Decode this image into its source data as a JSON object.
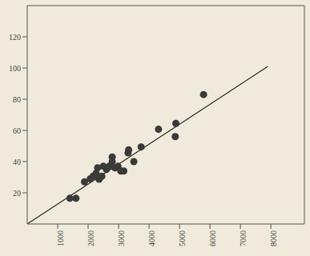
{
  "chart_data": {
    "type": "scatter",
    "xlim": [
      0,
      9100
    ],
    "ylim": [
      0,
      140
    ],
    "xticks": [
      1000,
      2000,
      3000,
      4000,
      5000,
      6000,
      7000,
      8000
    ],
    "yticks": [
      20,
      40,
      60,
      80,
      100,
      120
    ],
    "grid": false,
    "series": [
      {
        "type": "scatter",
        "color": "#3a3a3a",
        "marker": "circle",
        "x": [
          1400,
          1600,
          1880,
          2070,
          2160,
          2260,
          2310,
          2360,
          2450,
          2500,
          2600,
          2690,
          2790,
          2790,
          2880,
          2980,
          3070,
          3170,
          3310,
          3330,
          3500,
          3740,
          4310,
          4860,
          4880,
          5790
        ],
        "values": [
          16.5,
          16.5,
          27,
          29,
          30.6,
          32.5,
          36,
          28.7,
          30.6,
          37,
          35,
          37,
          40,
          43,
          36,
          37,
          34,
          34,
          45.6,
          47.5,
          40,
          49.4,
          60.7,
          56,
          64.5,
          83
        ]
      },
      {
        "type": "line",
        "color": "#2a2a2a",
        "line_style": "solid",
        "x": [
          0,
          7900
        ],
        "values": [
          0,
          101
        ]
      }
    ]
  }
}
